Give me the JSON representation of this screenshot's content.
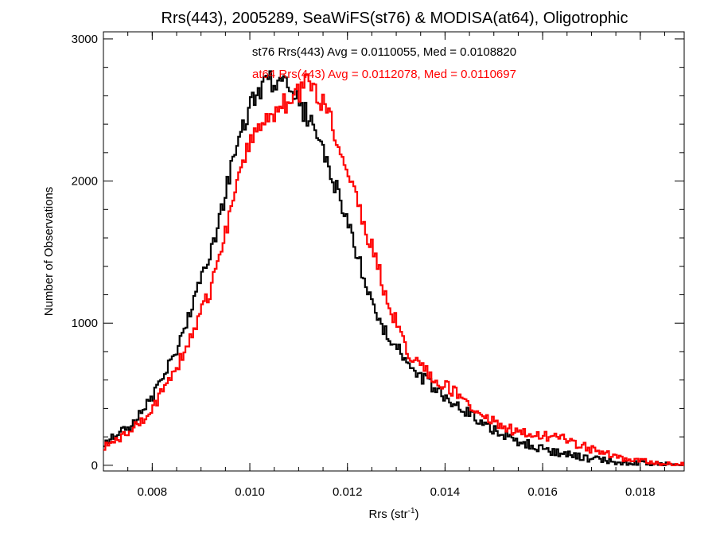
{
  "chart_data": {
    "type": "line",
    "subtype": "histogram-step",
    "title": "Rrs(443), 2005289, SeaWiFS(st76) & MODISA(at64), Oligotrophic",
    "xlabel": {
      "text": "Rrs (str",
      "superscript": "-1",
      "close": ")"
    },
    "ylabel": "Number of Observations",
    "xlim": [
      0.007,
      0.0189
    ],
    "ylim": [
      -40,
      3050
    ],
    "x_ticks": [
      0.008,
      0.01,
      0.012,
      0.014,
      0.016,
      0.018
    ],
    "x_tick_labels": [
      "0.008",
      "0.010",
      "0.012",
      "0.014",
      "0.016",
      "0.018"
    ],
    "y_ticks": [
      0,
      1000,
      2000,
      3000
    ],
    "y_tick_labels": [
      "0",
      "1000",
      "2000",
      "3000"
    ],
    "grid": false,
    "legend": "top-center",
    "annotations": [
      {
        "text": "st76 Rrs(443) Avg = 0.0110055, Med = 0.0108820",
        "color": "#000000"
      },
      {
        "text": "at64 Rrs(443) Avg = 0.0112078, Med = 0.0110697",
        "color": "#ff0000"
      }
    ],
    "series": [
      {
        "color": "#000000",
        "x": [
          0.007,
          0.0075,
          0.008,
          0.0085,
          0.009,
          0.0092,
          0.0094,
          0.0096,
          0.0098,
          0.01,
          0.0102,
          0.0104,
          0.0106,
          0.0108,
          0.011,
          0.0112,
          0.0114,
          0.0116,
          0.0118,
          0.012,
          0.0122,
          0.0124,
          0.0126,
          0.0128,
          0.013,
          0.0132,
          0.0134,
          0.0136,
          0.0138,
          0.014,
          0.0145,
          0.015,
          0.0155,
          0.016,
          0.0165,
          0.017,
          0.0175,
          0.018,
          0.0185,
          0.0189
        ],
        "y": [
          150,
          260,
          480,
          830,
          1280,
          1480,
          1760,
          2060,
          2330,
          2520,
          2640,
          2700,
          2700,
          2650,
          2560,
          2440,
          2290,
          2110,
          1910,
          1700,
          1480,
          1270,
          1080,
          930,
          830,
          730,
          660,
          600,
          540,
          480,
          360,
          250,
          170,
          115,
          75,
          45,
          25,
          12,
          5,
          2
        ]
      },
      {
        "color": "#ff0000",
        "x": [
          0.007,
          0.0075,
          0.008,
          0.0085,
          0.009,
          0.0092,
          0.0094,
          0.0096,
          0.0098,
          0.01,
          0.0102,
          0.0104,
          0.0106,
          0.0108,
          0.011,
          0.0112,
          0.0114,
          0.0116,
          0.0118,
          0.012,
          0.0122,
          0.0124,
          0.0126,
          0.0128,
          0.013,
          0.0132,
          0.0134,
          0.0136,
          0.0138,
          0.014,
          0.0145,
          0.015,
          0.0155,
          0.016,
          0.0165,
          0.017,
          0.0175,
          0.018,
          0.0185,
          0.0189
        ],
        "y": [
          120,
          220,
          390,
          690,
          1060,
          1230,
          1480,
          1790,
          2070,
          2280,
          2420,
          2480,
          2520,
          2550,
          2620,
          2700,
          2620,
          2480,
          2300,
          2100,
          1880,
          1640,
          1420,
          1190,
          1000,
          830,
          740,
          660,
          600,
          560,
          430,
          310,
          230,
          210,
          180,
          110,
          60,
          30,
          10,
          3
        ]
      }
    ]
  }
}
